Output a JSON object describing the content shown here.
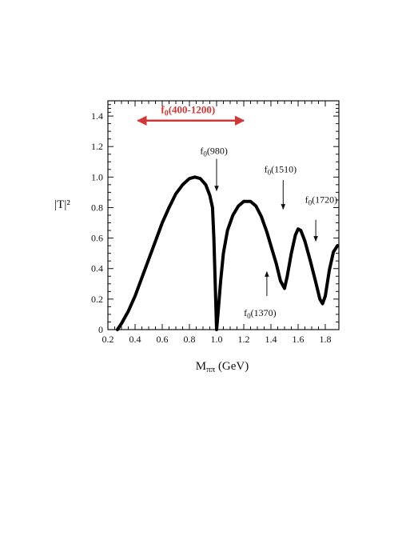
{
  "chart_data": {
    "type": "line",
    "title": "",
    "xlabel": "M",
    "xlabel_subscript": "ππ",
    "xlabel_unit": " (GeV)",
    "ylabel": "|T|²",
    "xlim": [
      0.2,
      1.9
    ],
    "ylim": [
      0,
      1.5
    ],
    "x_ticks": [
      0.2,
      0.4,
      0.6,
      0.8,
      1.0,
      1.2,
      1.4,
      1.6,
      1.8
    ],
    "x_tick_labels": [
      "0.2",
      "0.4",
      "0.6",
      "0.8",
      "1.0",
      "1.2",
      "1.4",
      "1.6",
      "1.8"
    ],
    "y_ticks": [
      0,
      0.2,
      0.4,
      0.6,
      0.8,
      1.0,
      1.2,
      1.4
    ],
    "y_tick_labels": [
      "0",
      "0.2",
      "0.4",
      "0.6",
      "0.8",
      "1.0",
      "1.2",
      "1.4"
    ],
    "grid": false,
    "legend": "none",
    "series": [
      {
        "color": "#000000",
        "x": [
          0.27,
          0.3,
          0.35,
          0.4,
          0.45,
          0.5,
          0.55,
          0.6,
          0.65,
          0.7,
          0.75,
          0.8,
          0.84,
          0.88,
          0.92,
          0.95,
          0.97,
          0.98,
          0.99,
          1.0,
          1.01,
          1.03,
          1.05,
          1.08,
          1.12,
          1.16,
          1.2,
          1.25,
          1.29,
          1.33,
          1.37,
          1.41,
          1.44,
          1.47,
          1.5,
          1.52,
          1.55,
          1.58,
          1.6,
          1.62,
          1.65,
          1.69,
          1.73,
          1.76,
          1.78,
          1.8,
          1.83,
          1.86,
          1.89
        ],
        "y": [
          0.0,
          0.04,
          0.12,
          0.22,
          0.34,
          0.46,
          0.58,
          0.7,
          0.8,
          0.89,
          0.95,
          0.99,
          1.0,
          0.99,
          0.95,
          0.88,
          0.8,
          0.6,
          0.3,
          0.0,
          0.1,
          0.32,
          0.5,
          0.65,
          0.75,
          0.81,
          0.84,
          0.84,
          0.81,
          0.74,
          0.64,
          0.52,
          0.43,
          0.32,
          0.27,
          0.35,
          0.5,
          0.62,
          0.66,
          0.65,
          0.58,
          0.45,
          0.31,
          0.2,
          0.17,
          0.22,
          0.39,
          0.51,
          0.55
        ]
      }
    ],
    "annotations": [
      {
        "text": "f",
        "sub": "0",
        "rest": "(400-1200)",
        "color": "#d03838",
        "type": "double-arrow",
        "x0": 0.42,
        "x1": 1.2,
        "y": 1.37,
        "label_x": 0.79,
        "label_y": 1.42
      },
      {
        "text": "f",
        "sub": "0",
        "rest": "(980)",
        "color": "#111111",
        "type": "arrow-down",
        "x": 1.0,
        "y_from": 1.12,
        "y_to": 0.91,
        "label_x": 0.98,
        "label_y": 1.15
      },
      {
        "text": "f",
        "sub": "0",
        "rest": "(1510)",
        "color": "#111111",
        "type": "arrow-down",
        "x": 1.49,
        "y_from": 0.98,
        "y_to": 0.79,
        "label_x": 1.47,
        "label_y": 1.03
      },
      {
        "text": "f",
        "sub": "0",
        "rest": "(1720)",
        "color": "#111111",
        "type": "arrow-down",
        "x": 1.73,
        "y_from": 0.72,
        "y_to": 0.58,
        "label_x": 1.77,
        "label_y": 0.83
      },
      {
        "text": "f",
        "sub": "0",
        "rest": "(1370)",
        "color": "#111111",
        "type": "arrow-up",
        "x": 1.37,
        "y_from": 0.22,
        "y_to": 0.38,
        "label_x": 1.32,
        "label_y": 0.09
      }
    ]
  }
}
